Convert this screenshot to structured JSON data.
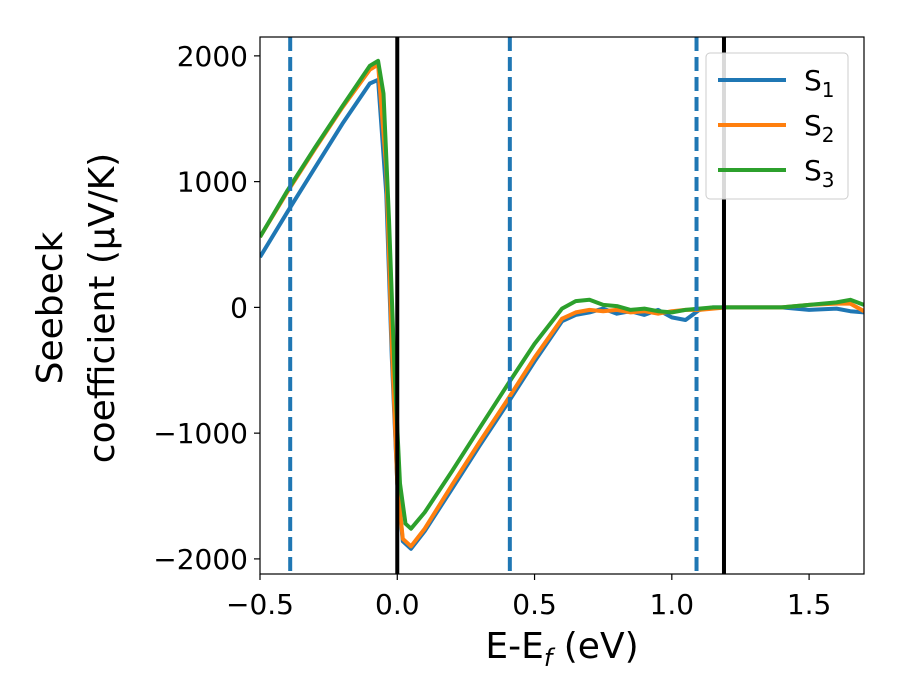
{
  "chart_data": {
    "type": "line",
    "xlabel": "E-E",
    "xlabel_sub": "f",
    "xlabel_suffix": " (eV)",
    "ylabel_line1": "Seebeck",
    "ylabel_line2": "coefficient  (μV/K)",
    "xlim": [
      -0.5,
      1.7
    ],
    "ylim": [
      -2120,
      2150
    ],
    "xticks": [
      -0.5,
      0.0,
      0.5,
      1.0,
      1.5
    ],
    "xtick_labels": [
      "−0.5",
      "0.0",
      "0.5",
      "1.0",
      "1.5"
    ],
    "yticks": [
      -2000,
      -1000,
      0,
      1000,
      2000
    ],
    "ytick_labels": [
      "−2000",
      "−1000",
      "0",
      "1000",
      "2000"
    ],
    "legend_position": "top-right",
    "vlines_dashed": [
      -0.39,
      0.41,
      1.09
    ],
    "vlines_dashed_color": "#1f77b4",
    "vlines_solid": [
      0.0,
      1.19
    ],
    "vlines_solid_color": "#000000",
    "series": [
      {
        "name": "S",
        "sub": "1",
        "color": "#1f77b4",
        "x": [
          -0.5,
          -0.4,
          -0.3,
          -0.2,
          -0.1,
          -0.07,
          -0.04,
          -0.02,
          0.0,
          0.02,
          0.05,
          0.1,
          0.2,
          0.3,
          0.4,
          0.5,
          0.6,
          0.65,
          0.7,
          0.75,
          0.8,
          0.85,
          0.9,
          0.95,
          1.0,
          1.05,
          1.1,
          1.15,
          1.2,
          1.3,
          1.4,
          1.5,
          1.6,
          1.65,
          1.7
        ],
        "y": [
          400,
          760,
          1110,
          1460,
          1780,
          1810,
          900,
          -400,
          -1400,
          -1860,
          -1920,
          -1780,
          -1440,
          -1100,
          -770,
          -430,
          -110,
          -60,
          -40,
          -10,
          -50,
          -30,
          -60,
          -20,
          -80,
          -100,
          -20,
          0,
          0,
          0,
          0,
          -20,
          -10,
          -30,
          -40
        ]
      },
      {
        "name": "S",
        "sub": "2",
        "color": "#ff7f0e",
        "x": [
          -0.5,
          -0.4,
          -0.3,
          -0.2,
          -0.1,
          -0.07,
          -0.04,
          -0.02,
          0.0,
          0.02,
          0.05,
          0.1,
          0.2,
          0.3,
          0.4,
          0.5,
          0.6,
          0.65,
          0.7,
          0.75,
          0.8,
          0.85,
          0.9,
          0.95,
          1.0,
          1.05,
          1.1,
          1.15,
          1.2,
          1.3,
          1.4,
          1.5,
          1.6,
          1.65,
          1.7
        ],
        "y": [
          560,
          920,
          1260,
          1590,
          1890,
          1930,
          1100,
          -300,
          -1400,
          -1840,
          -1900,
          -1760,
          -1410,
          -1070,
          -740,
          -400,
          -90,
          -40,
          -20,
          -30,
          -20,
          -40,
          -30,
          -50,
          -30,
          -20,
          -20,
          -10,
          0,
          0,
          0,
          20,
          30,
          30,
          -30
        ]
      },
      {
        "name": "S",
        "sub": "3",
        "color": "#2ca02c",
        "x": [
          -0.5,
          -0.4,
          -0.3,
          -0.2,
          -0.1,
          -0.07,
          -0.05,
          -0.03,
          -0.01,
          0.01,
          0.03,
          0.05,
          0.1,
          0.2,
          0.3,
          0.4,
          0.5,
          0.6,
          0.65,
          0.7,
          0.75,
          0.8,
          0.85,
          0.9,
          0.95,
          1.0,
          1.05,
          1.1,
          1.15,
          1.2,
          1.3,
          1.4,
          1.5,
          1.6,
          1.65,
          1.7
        ],
        "y": [
          560,
          930,
          1270,
          1600,
          1920,
          1960,
          1700,
          700,
          -500,
          -1400,
          -1720,
          -1760,
          -1630,
          -1300,
          -960,
          -620,
          -290,
          -10,
          50,
          60,
          20,
          10,
          -20,
          -10,
          -30,
          -40,
          -20,
          -10,
          0,
          0,
          0,
          0,
          20,
          40,
          60,
          20
        ]
      }
    ]
  }
}
